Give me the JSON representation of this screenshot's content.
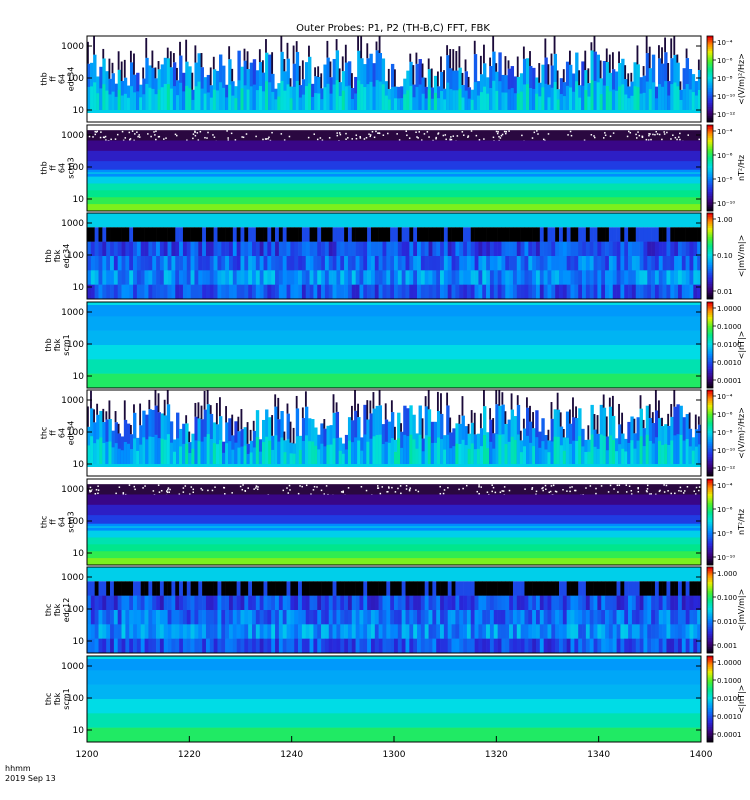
{
  "chart_data": {
    "type": "heatmap",
    "title": "Outer Probes: P1, P2 (TH-B,C) FFT, FBK",
    "x_axis": {
      "range": [
        1200,
        1400
      ],
      "ticks": [
        "1200",
        "1220",
        "1240",
        "1300",
        "1320",
        "1340",
        "1400"
      ],
      "label_lines": [
        "hhmm",
        "2019 Sep 13"
      ]
    },
    "panels": [
      {
        "ylabel": [
          "thb",
          "ff",
          "64",
          "edc34"
        ],
        "yticks": [
          "10",
          "100",
          "1000"
        ],
        "colorbar": {
          "label": "<(V/m)²/Hz>",
          "ticks": [
            "10⁻⁴",
            "10⁻⁶",
            "10⁻⁸",
            "10⁻¹⁰",
            "10⁻¹²"
          ]
        },
        "style": "efield_ff"
      },
      {
        "ylabel": [
          "thb",
          "ff",
          "64",
          "scm3"
        ],
        "yticks": [
          "10",
          "100",
          "1000"
        ],
        "colorbar": {
          "label": "nT²/Hz",
          "ticks": [
            "10⁻⁴",
            "10⁻⁶",
            "10⁻⁸",
            "10⁻¹⁰"
          ]
        },
        "style": "scm_ff"
      },
      {
        "ylabel": [
          "thb",
          "fbk",
          "edc34"
        ],
        "yticks": [
          "10",
          "100",
          "1000"
        ],
        "colorbar": {
          "label": "<|mV/m|>",
          "ticks": [
            "1.00",
            "0.10",
            "0.01"
          ]
        },
        "style": "efield_fbk"
      },
      {
        "ylabel": [
          "thb",
          "fbk",
          "scm1"
        ],
        "yticks": [
          "10",
          "100",
          "1000"
        ],
        "colorbar": {
          "label": "<|nT|>",
          "ticks": [
            "1.0000",
            "0.1000",
            "0.0100",
            "0.0010",
            "0.0001"
          ]
        },
        "style": "scm_fbk"
      },
      {
        "ylabel": [
          "thc",
          "ff",
          "64",
          "edc34"
        ],
        "yticks": [
          "10",
          "100",
          "1000"
        ],
        "colorbar": {
          "label": "<(V/m)²/Hz>",
          "ticks": [
            "10⁻⁴",
            "10⁻⁶",
            "10⁻⁸",
            "10⁻¹⁰",
            "10⁻¹²"
          ]
        },
        "style": "efield_ff"
      },
      {
        "ylabel": [
          "thc",
          "ff",
          "64",
          "scm3"
        ],
        "yticks": [
          "10",
          "100",
          "1000"
        ],
        "colorbar": {
          "label": "nT²/Hz",
          "ticks": [
            "10⁻⁴",
            "10⁻⁶",
            "10⁻⁸",
            "10⁻¹⁰"
          ]
        },
        "style": "scm_ff"
      },
      {
        "ylabel": [
          "thc",
          "fbk",
          "edc12"
        ],
        "yticks": [
          "10",
          "100",
          "1000"
        ],
        "colorbar": {
          "label": "<|mV/m|>",
          "ticks": [
            "1.000",
            "0.100",
            "0.010",
            "0.001"
          ]
        },
        "style": "efield_fbk"
      },
      {
        "ylabel": [
          "thc",
          "fbk",
          "scm1"
        ],
        "yticks": [
          "10",
          "100",
          "1000"
        ],
        "colorbar": {
          "label": "<|nT|>",
          "ticks": [
            "1.0000",
            "0.1000",
            "0.0100",
            "0.0010",
            "0.0001"
          ]
        },
        "style": "scm_fbk"
      }
    ]
  }
}
